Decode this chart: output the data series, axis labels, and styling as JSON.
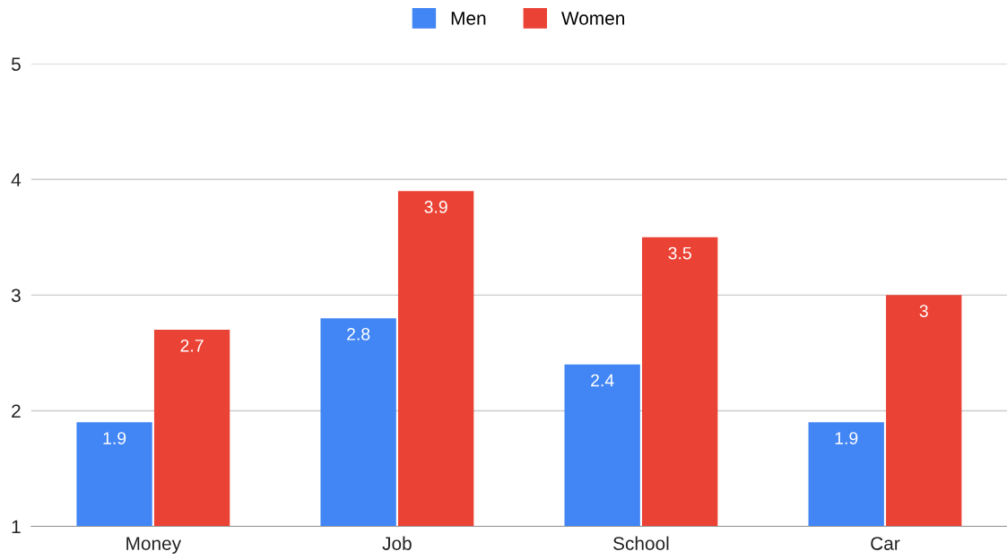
{
  "chart_data": {
    "type": "bar",
    "categories": [
      "Money",
      "Job",
      "School",
      "Car"
    ],
    "series": [
      {
        "name": "Men",
        "color": "#4285f4",
        "values": [
          1.9,
          2.8,
          2.4,
          1.9
        ]
      },
      {
        "name": "Women",
        "color": "#ea4335",
        "values": [
          2.7,
          3.9,
          3.5,
          3
        ]
      }
    ],
    "ylim": [
      1,
      5
    ],
    "yticks": [
      1,
      2,
      3,
      4,
      5
    ],
    "grid": "y",
    "legend": "top",
    "data_labels": true
  }
}
